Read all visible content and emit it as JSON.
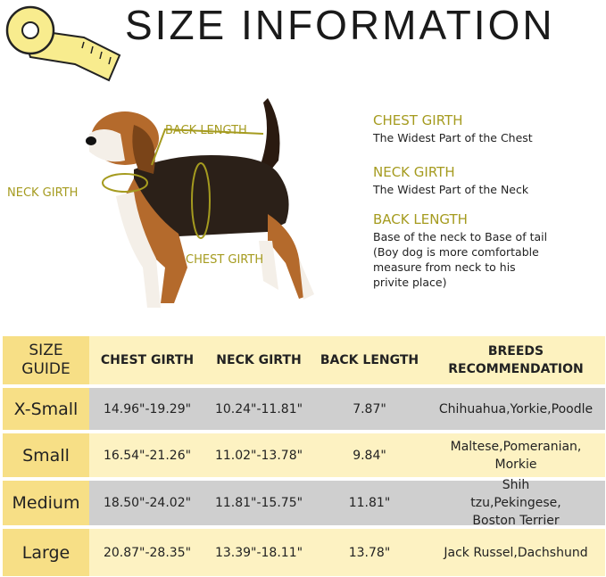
{
  "title": "SIZE INFORMATION",
  "diagram_labels": {
    "back_length": "BACK LENGTH",
    "neck_girth": "NECK GIRTH",
    "chest_girth": "CHEST GIRTH"
  },
  "info": [
    {
      "heading": "CHEST GIRTH",
      "text": "The Widest Part of the Chest"
    },
    {
      "heading": "NECK GIRTH",
      "text": "The Widest Part of the Neck"
    },
    {
      "heading": "BACK LENGTH",
      "text": "Base of the neck to Base of tail (Boy dog is more comfortable measure from neck to his privite place)"
    }
  ],
  "table": {
    "headers": [
      "SIZE GUIDE",
      "CHEST GIRTH",
      "NECK GIRTH",
      "BACK LENGTH",
      "BREEDS RECOMMENDATION"
    ],
    "rows": [
      [
        "X-Small",
        "14.96\"-19.29\"",
        "10.24\"-11.81\"",
        "7.87\"",
        "Chihuahua,Yorkie,Poodle"
      ],
      [
        "Small",
        "16.54\"-21.26\"",
        "11.02\"-13.78\"",
        "9.84\"",
        "Maltese,Pomeranian, Morkie"
      ],
      [
        "Medium",
        "18.50\"-24.02\"",
        "11.81\"-15.75\"",
        "11.81\"",
        "Shih tzu,Pekingese, Boston Terrier"
      ],
      [
        "Large",
        "20.87\"-28.35\"",
        "13.39\"-18.11\"",
        "13.78\"",
        "Jack Russel,Dachshund"
      ]
    ]
  },
  "colors": {
    "accent": "#a59b1f",
    "size_col": "#f7df86",
    "row_light": "#fdf2c2",
    "row_gray": "#cfcfcf"
  }
}
